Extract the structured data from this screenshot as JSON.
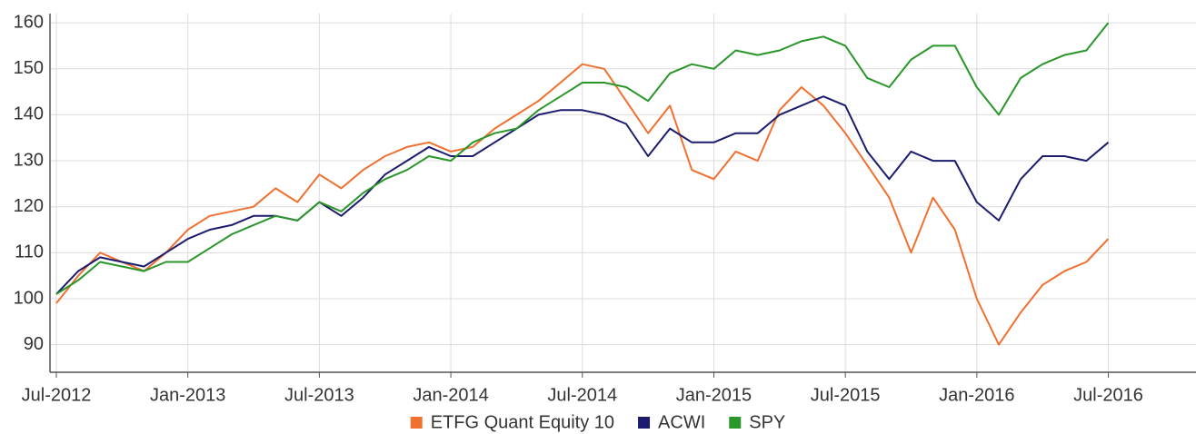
{
  "chart_data": {
    "type": "line",
    "x": [
      "2012-07",
      "2012-08",
      "2012-09",
      "2012-10",
      "2012-11",
      "2012-12",
      "2013-01",
      "2013-02",
      "2013-03",
      "2013-04",
      "2013-05",
      "2013-06",
      "2013-07",
      "2013-08",
      "2013-09",
      "2013-10",
      "2013-11",
      "2013-12",
      "2014-01",
      "2014-02",
      "2014-03",
      "2014-04",
      "2014-05",
      "2014-06",
      "2014-07",
      "2014-08",
      "2014-09",
      "2014-10",
      "2014-11",
      "2014-12",
      "2015-01",
      "2015-02",
      "2015-03",
      "2015-04",
      "2015-05",
      "2015-06",
      "2015-07",
      "2015-08",
      "2015-09",
      "2015-10",
      "2015-11",
      "2015-12",
      "2016-01",
      "2016-02",
      "2016-03",
      "2016-04",
      "2016-05",
      "2016-06",
      "2016-07"
    ],
    "series": [
      {
        "name": "ETFG Quant Equity 10",
        "color": "#f07030",
        "values": [
          99,
          105,
          110,
          108,
          106,
          110,
          115,
          118,
          119,
          120,
          124,
          121,
          127,
          124,
          128,
          131,
          133,
          134,
          132,
          133,
          137,
          140,
          143,
          147,
          151,
          150,
          143,
          136,
          142,
          128,
          126,
          132,
          130,
          141,
          146,
          142,
          136,
          129,
          122,
          110,
          122,
          115,
          100,
          90,
          97,
          103,
          106,
          108,
          113
        ]
      },
      {
        "name": "ACWI",
        "color": "#1c1c6e",
        "values": [
          101,
          106,
          109,
          108,
          107,
          110,
          113,
          115,
          116,
          118,
          118,
          117,
          121,
          118,
          122,
          127,
          130,
          133,
          131,
          131,
          134,
          137,
          140,
          141,
          141,
          140,
          138,
          131,
          137,
          134,
          134,
          136,
          136,
          140,
          142,
          144,
          142,
          132,
          126,
          132,
          130,
          130,
          121,
          117,
          126,
          131,
          131,
          130,
          134
        ]
      },
      {
        "name": "SPY",
        "color": "#2a962a",
        "values": [
          101,
          104,
          108,
          107,
          106,
          108,
          108,
          111,
          114,
          116,
          118,
          117,
          121,
          119,
          123,
          126,
          128,
          131,
          130,
          134,
          136,
          137,
          141,
          144,
          147,
          147,
          146,
          143,
          149,
          151,
          150,
          154,
          153,
          154,
          156,
          157,
          155,
          148,
          146,
          152,
          155,
          155,
          146,
          140,
          148,
          151,
          153,
          154,
          160
        ]
      }
    ],
    "xlim": [
      "2012-07",
      "2016-11"
    ],
    "xticks": [
      {
        "value": "2012-07",
        "label": "Jul-2012"
      },
      {
        "value": "2013-01",
        "label": "Jan-2013"
      },
      {
        "value": "2013-07",
        "label": "Jul-2013"
      },
      {
        "value": "2014-01",
        "label": "Jan-2014"
      },
      {
        "value": "2014-07",
        "label": "Jul-2014"
      },
      {
        "value": "2015-01",
        "label": "Jan-2015"
      },
      {
        "value": "2015-07",
        "label": "Jul-2015"
      },
      {
        "value": "2016-01",
        "label": "Jan-2016"
      },
      {
        "value": "2016-07",
        "label": "Jul-2016"
      }
    ],
    "ylim": [
      84,
      162
    ],
    "yticks": [
      90,
      100,
      110,
      120,
      130,
      140,
      150,
      160
    ],
    "grid": true,
    "legend": "bottom"
  }
}
